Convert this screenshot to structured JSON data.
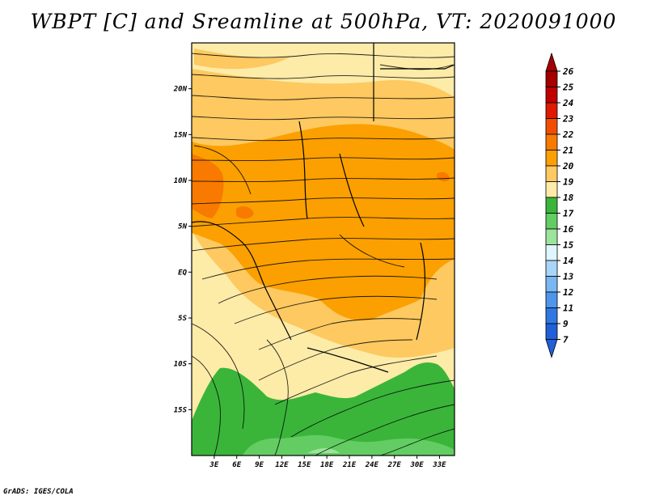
{
  "title": "WBPT [C] and Sreamline at 500hPa, VT: 2020091000",
  "footer": "GrADS: IGES/COLA",
  "map": {
    "lon_range": [
      0,
      35
    ],
    "lat_range": [
      -20,
      25
    ],
    "lat_ticks": [
      {
        "value": 20,
        "label": "20N"
      },
      {
        "value": 15,
        "label": "15N"
      },
      {
        "value": 10,
        "label": "10N"
      },
      {
        "value": 5,
        "label": "5N"
      },
      {
        "value": 0,
        "label": "EQ"
      },
      {
        "value": -5,
        "label": "5S"
      },
      {
        "value": -10,
        "label": "10S"
      },
      {
        "value": -15,
        "label": "15S"
      }
    ],
    "lon_ticks": [
      {
        "value": 3,
        "label": "3E"
      },
      {
        "value": 6,
        "label": "6E"
      },
      {
        "value": 9,
        "label": "9E"
      },
      {
        "value": 12,
        "label": "12E"
      },
      {
        "value": 15,
        "label": "15E"
      },
      {
        "value": 18,
        "label": "18E"
      },
      {
        "value": 21,
        "label": "21E"
      },
      {
        "value": 24,
        "label": "24E"
      },
      {
        "value": 27,
        "label": "27E"
      },
      {
        "value": 30,
        "label": "30E"
      },
      {
        "value": 33,
        "label": "33E"
      }
    ]
  },
  "colorbar": {
    "labels": [
      "26",
      "25",
      "24",
      "23",
      "22",
      "21",
      "20",
      "19",
      "18",
      "17",
      "16",
      "15",
      "14",
      "13",
      "12",
      "11",
      "9",
      "7"
    ],
    "colors": [
      "#a50000",
      "#c00000",
      "#e01a00",
      "#f24e00",
      "#f87a00",
      "#fba000",
      "#fdc960",
      "#fdeba8",
      "#3ab53a",
      "#63cd63",
      "#9ce39c",
      "#dff5ff",
      "#a9d5f9",
      "#78b7f2",
      "#4d96ec",
      "#2f78e3",
      "#1f5fd8"
    ],
    "top_color": "#a50000",
    "bottom_color": "#1f5fd8"
  }
}
